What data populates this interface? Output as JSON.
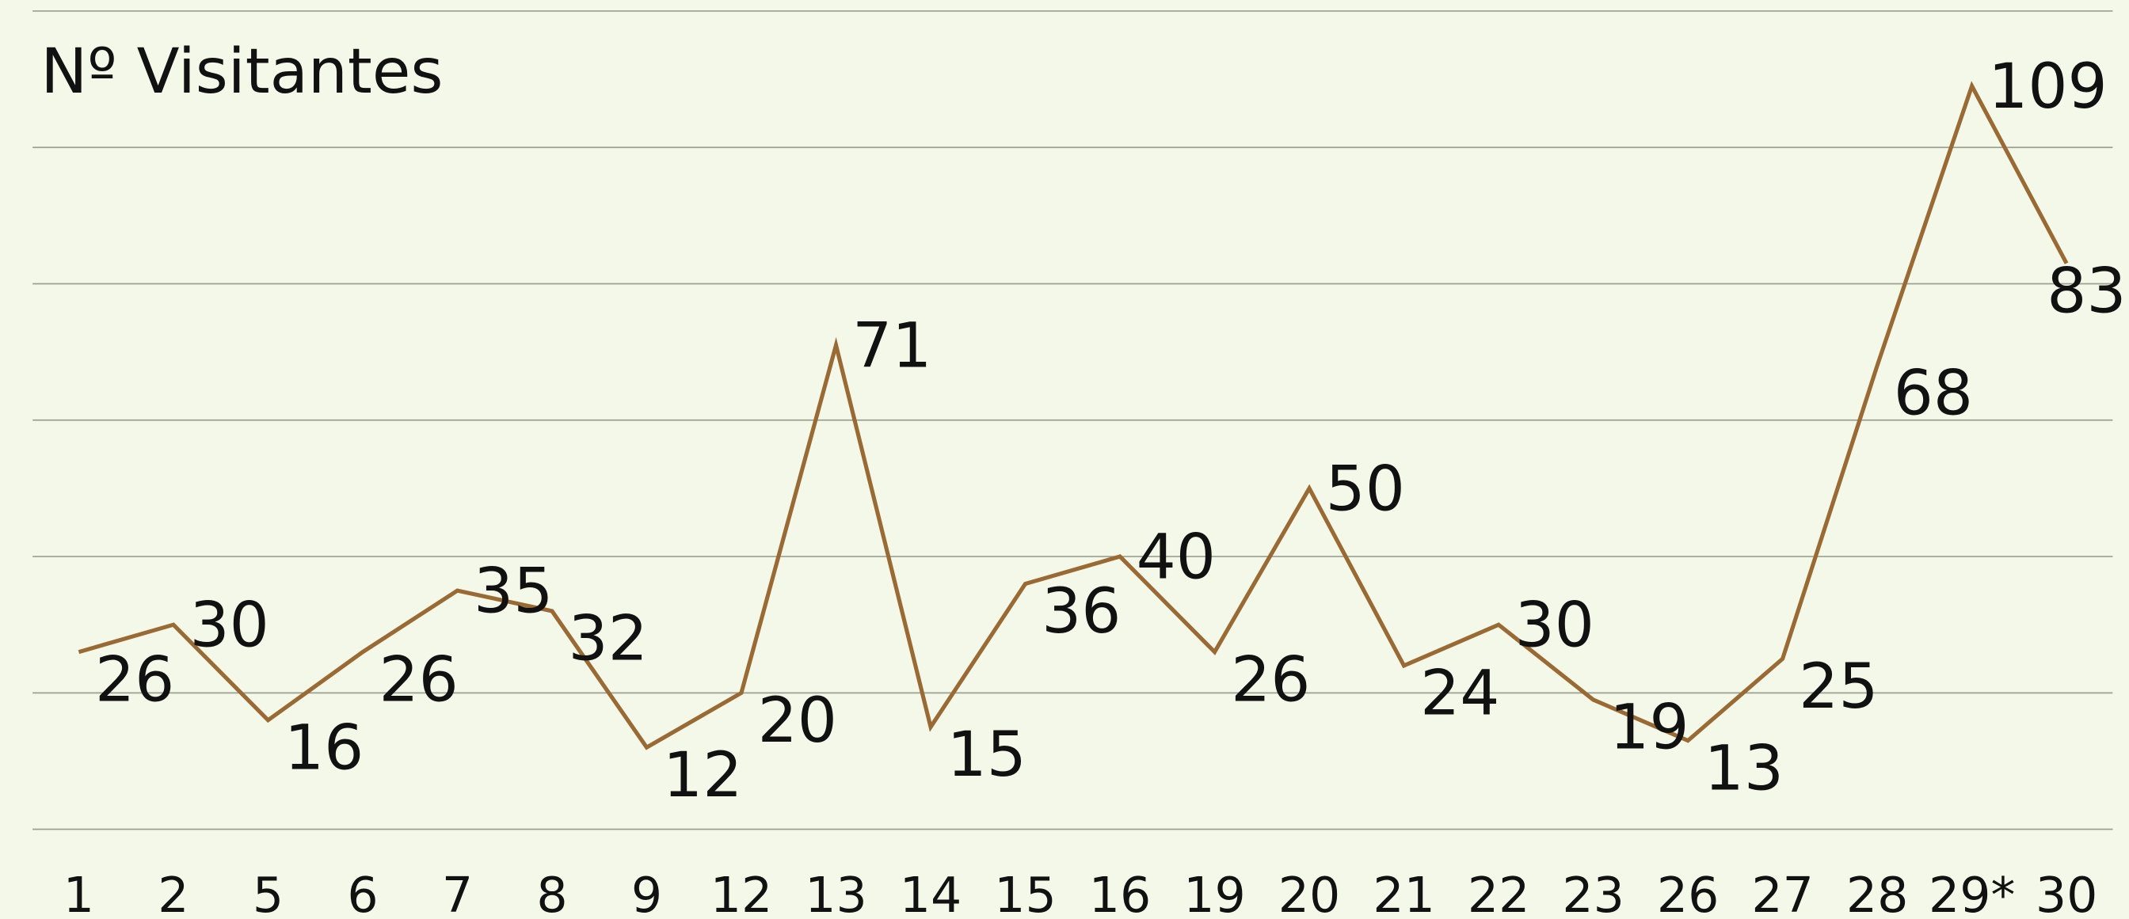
{
  "chart_data": {
    "type": "line",
    "title": "Nº Visitantes",
    "categories": [
      "1",
      "2",
      "5",
      "6",
      "7",
      "8",
      "9",
      "12",
      "13",
      "14",
      "15",
      "16",
      "19",
      "20",
      "21",
      "22",
      "23",
      "26",
      "27",
      "28",
      "29*",
      "30"
    ],
    "series": [
      {
        "name": "Nº Visitantes",
        "color": "#9a6a35",
        "values": [
          26,
          30,
          16,
          26,
          35,
          32,
          12,
          20,
          71,
          15,
          36,
          40,
          26,
          50,
          24,
          30,
          19,
          13,
          25,
          68,
          109,
          83
        ]
      }
    ],
    "ylim": [
      0,
      120
    ],
    "yticks": [
      0,
      20,
      40,
      60,
      80,
      100,
      120
    ],
    "grid": true
  }
}
